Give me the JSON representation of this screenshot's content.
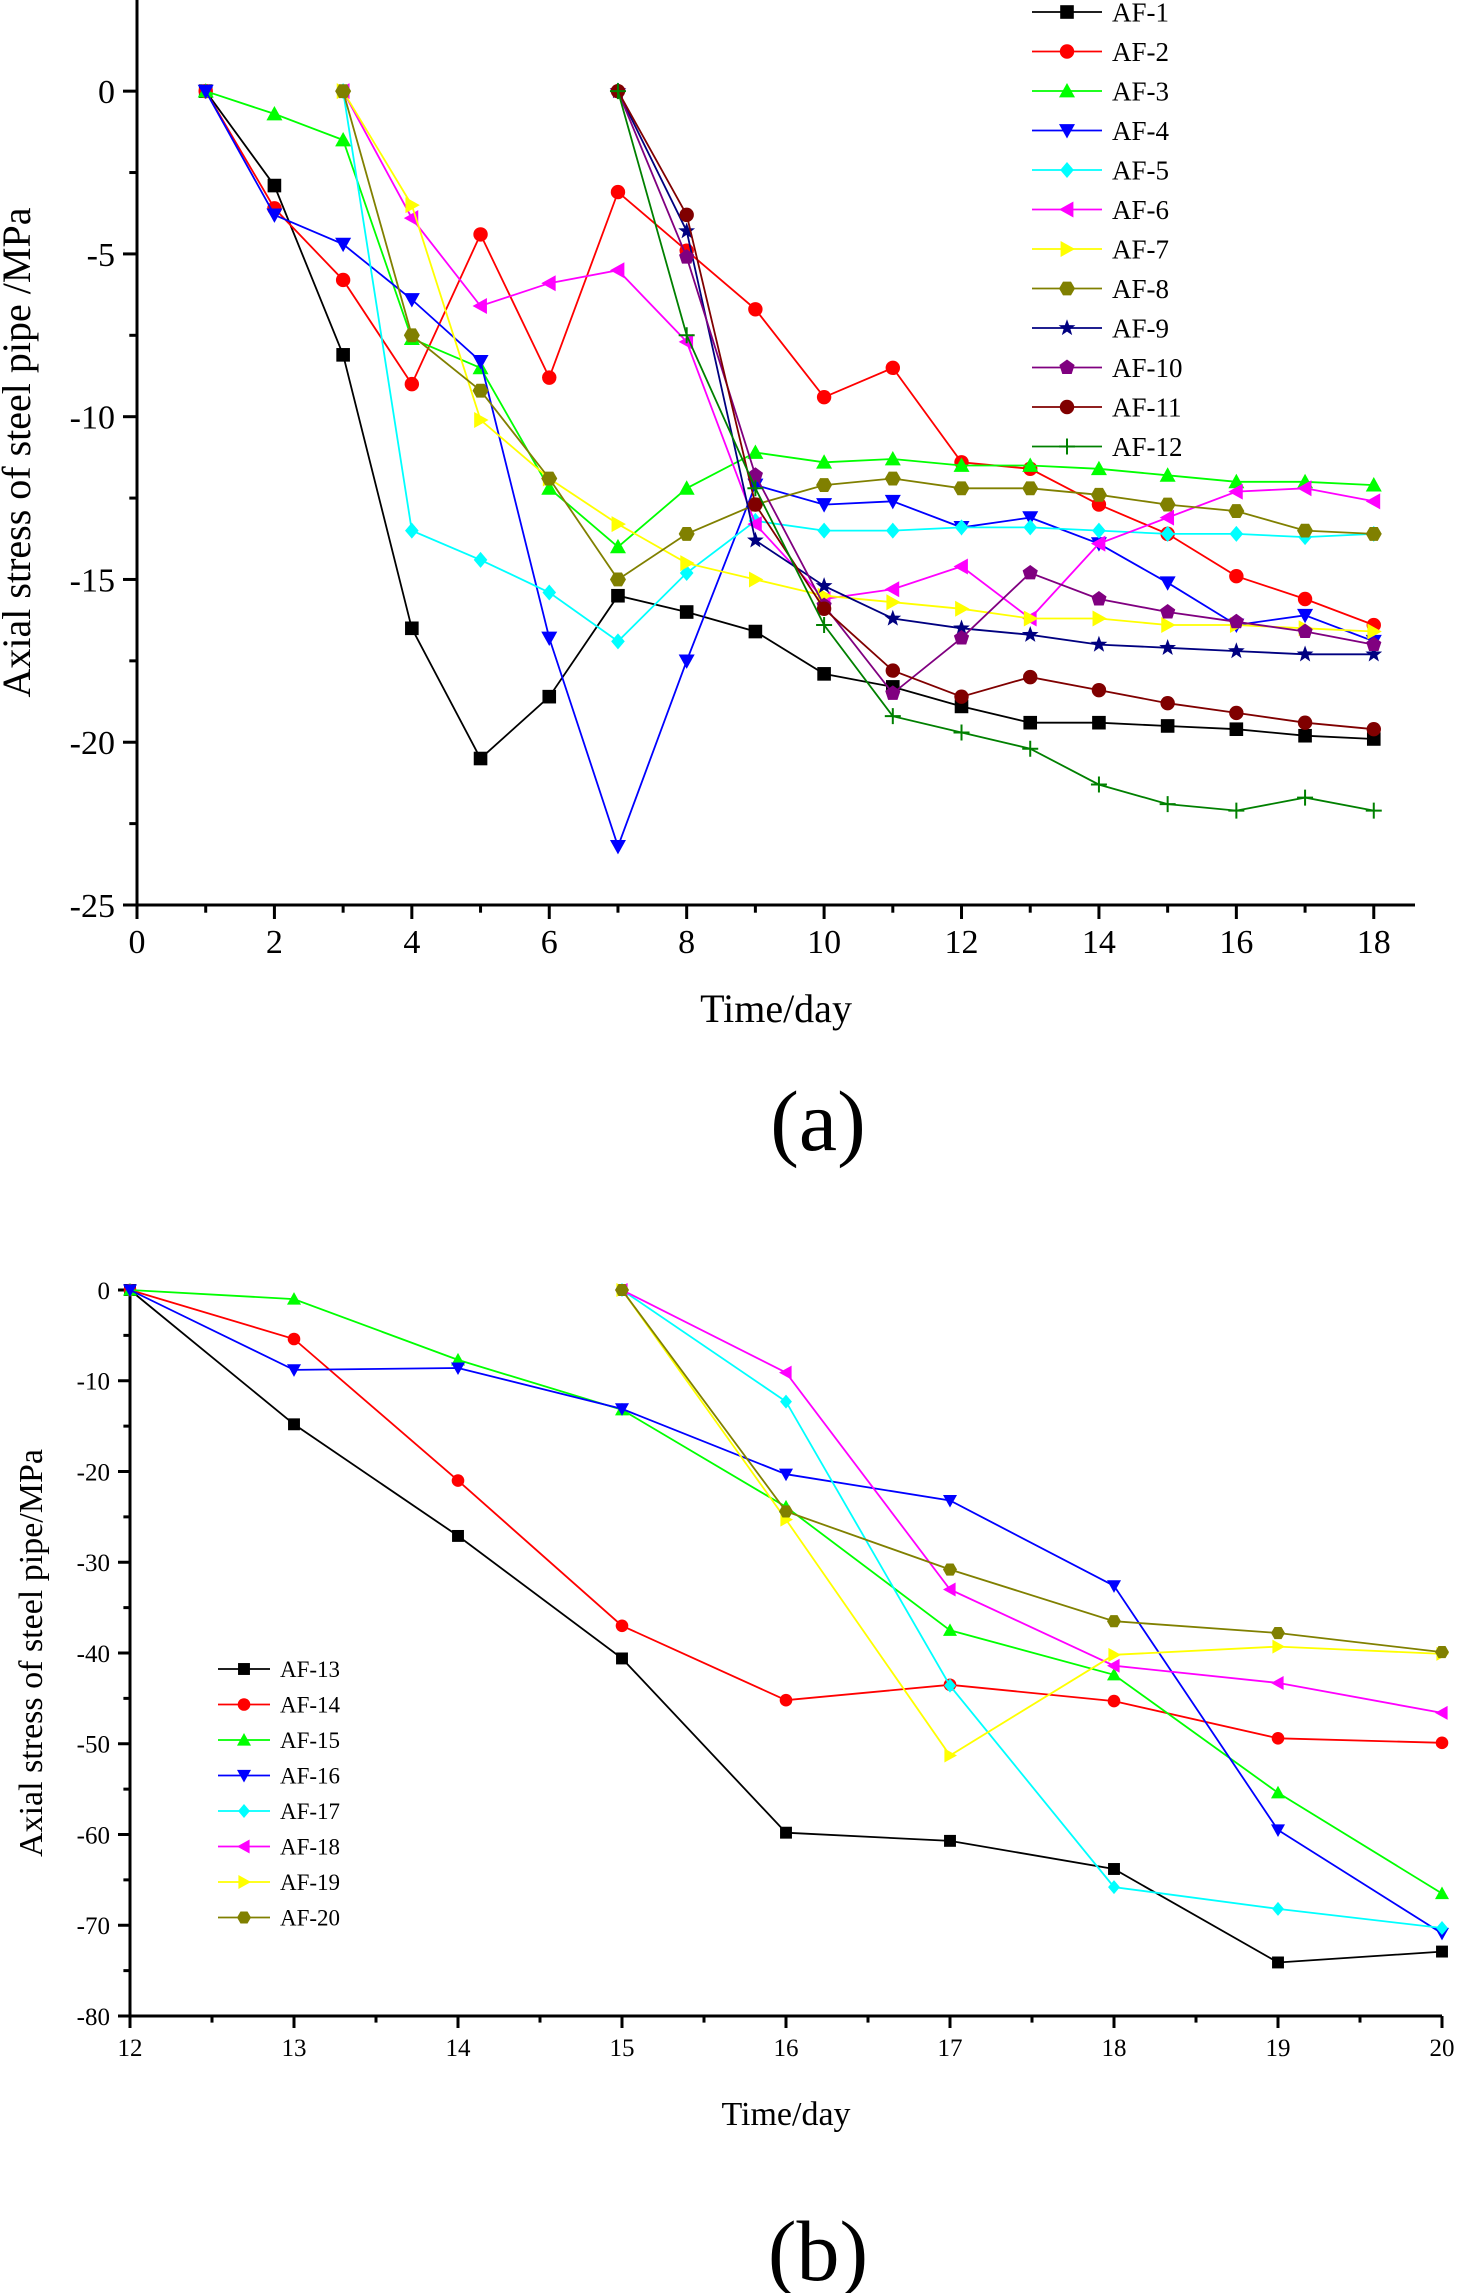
{
  "panels": [
    {
      "id": "a",
      "label": "(a)"
    },
    {
      "id": "b",
      "label": "(b)"
    }
  ],
  "chart_data": [
    {
      "type": "line",
      "xlabel": "Time/day",
      "ylabel": "Axial stress of steel pipe /MPa",
      "xlim": [
        0,
        18.6
      ],
      "ylim": [
        -25,
        2.8
      ],
      "xticks": [
        0,
        2,
        4,
        6,
        8,
        10,
        12,
        14,
        16,
        18
      ],
      "yticks": [
        0,
        -5,
        -10,
        -15,
        -20,
        -25
      ],
      "legend_position": "top-right",
      "grid": false,
      "series": [
        {
          "name": "AF-1",
          "color": "#000000",
          "marker": "square",
          "x": [
            1,
            2,
            3,
            4,
            5,
            6,
            7,
            8,
            9,
            10,
            11,
            12,
            13,
            14,
            15,
            16,
            17,
            18
          ],
          "y": [
            0,
            -2.9,
            -8.1,
            -16.5,
            -20.5,
            -18.6,
            -15.5,
            -16.0,
            -16.6,
            -17.9,
            -18.3,
            -18.9,
            -19.4,
            -19.4,
            -19.5,
            -19.6,
            -19.8,
            -19.9
          ]
        },
        {
          "name": "AF-2",
          "color": "#ff0000",
          "marker": "circle",
          "x": [
            1,
            2,
            3,
            4,
            5,
            6,
            7,
            8,
            9,
            10,
            11,
            12,
            13,
            14,
            15,
            16,
            17,
            18
          ],
          "y": [
            0,
            -3.6,
            -5.8,
            -9.0,
            -4.4,
            -8.8,
            -3.1,
            -4.9,
            -6.7,
            -9.4,
            -8.5,
            -11.4,
            -11.6,
            -12.7,
            -13.6,
            -14.9,
            -15.6,
            -16.4
          ]
        },
        {
          "name": "AF-3",
          "color": "#00ff00",
          "marker": "triangle-up",
          "x": [
            1,
            2,
            3,
            4,
            5,
            6,
            7,
            8,
            9,
            10,
            11,
            12,
            13,
            14,
            15,
            16,
            17,
            18
          ],
          "y": [
            0,
            -0.7,
            -1.5,
            -7.6,
            -8.5,
            -12.2,
            -14.0,
            -12.2,
            -11.1,
            -11.4,
            -11.3,
            -11.5,
            -11.5,
            -11.6,
            -11.8,
            -12.0,
            -12.0,
            -12.1
          ]
        },
        {
          "name": "AF-4",
          "color": "#0000ff",
          "marker": "triangle-down",
          "x": [
            1,
            2,
            3,
            4,
            5,
            6,
            7,
            8,
            9,
            10,
            11,
            12,
            13,
            14,
            15,
            16,
            17,
            18
          ],
          "y": [
            0,
            -3.8,
            -4.7,
            -6.4,
            -8.3,
            -16.8,
            -23.2,
            -17.5,
            -12.1,
            -12.7,
            -12.6,
            -13.4,
            -13.1,
            -13.9,
            -15.1,
            -16.4,
            -16.1,
            -16.9
          ]
        },
        {
          "name": "AF-5",
          "color": "#00ffff",
          "marker": "diamond",
          "x": [
            3,
            4,
            5,
            6,
            7,
            8,
            9,
            10,
            11,
            12,
            13,
            14,
            15,
            16,
            17,
            18
          ],
          "y": [
            0,
            -13.5,
            -14.4,
            -15.4,
            -16.9,
            -14.8,
            -13.2,
            -13.5,
            -13.5,
            -13.4,
            -13.4,
            -13.5,
            -13.6,
            -13.6,
            -13.7,
            -13.6
          ]
        },
        {
          "name": "AF-6",
          "color": "#ff00ff",
          "marker": "triangle-left",
          "x": [
            3,
            4,
            5,
            6,
            7,
            8,
            9,
            10,
            11,
            12,
            13,
            14,
            15,
            16,
            17,
            18
          ],
          "y": [
            0,
            -3.9,
            -6.6,
            -5.9,
            -5.5,
            -7.7,
            -13.3,
            -15.6,
            -15.3,
            -14.6,
            -16.2,
            -13.9,
            -13.1,
            -12.3,
            -12.2,
            -12.6
          ]
        },
        {
          "name": "AF-7",
          "color": "#ffff00",
          "marker": "triangle-right",
          "x": [
            3,
            4,
            5,
            6,
            7,
            8,
            9,
            10,
            11,
            12,
            13,
            14,
            15,
            16,
            17,
            18
          ],
          "y": [
            0,
            -3.5,
            -10.1,
            -11.9,
            -13.3,
            -14.5,
            -15.0,
            -15.5,
            -15.7,
            -15.9,
            -16.2,
            -16.2,
            -16.4,
            -16.4,
            -16.5,
            -16.6
          ]
        },
        {
          "name": "AF-8",
          "color": "#808000",
          "marker": "hexagon",
          "x": [
            3,
            4,
            5,
            6,
            7,
            8,
            9,
            10,
            11,
            12,
            13,
            14,
            15,
            16,
            17,
            18
          ],
          "y": [
            0,
            -7.5,
            -9.2,
            -11.9,
            -15.0,
            -13.6,
            -12.7,
            -12.1,
            -11.9,
            -12.2,
            -12.2,
            -12.4,
            -12.7,
            -12.9,
            -13.5,
            -13.6
          ]
        },
        {
          "name": "AF-9",
          "color": "#000080",
          "marker": "star",
          "x": [
            7,
            8,
            9,
            10,
            11,
            12,
            13,
            14,
            15,
            16,
            17,
            18
          ],
          "y": [
            0,
            -4.3,
            -13.8,
            -15.2,
            -16.2,
            -16.5,
            -16.7,
            -17.0,
            -17.1,
            -17.2,
            -17.3,
            -17.3
          ]
        },
        {
          "name": "AF-10",
          "color": "#800080",
          "marker": "pentagon",
          "x": [
            7,
            8,
            9,
            10,
            11,
            12,
            13,
            14,
            15,
            16,
            17,
            18
          ],
          "y": [
            0,
            -5.1,
            -11.8,
            -15.8,
            -18.5,
            -16.8,
            -14.8,
            -15.6,
            -16.0,
            -16.3,
            -16.6,
            -17.0
          ]
        },
        {
          "name": "AF-11",
          "color": "#800000",
          "marker": "circle",
          "x": [
            7,
            8,
            9,
            10,
            11,
            12,
            13,
            14,
            15,
            16,
            17,
            18
          ],
          "y": [
            0,
            -3.8,
            -12.7,
            -15.9,
            -17.8,
            -18.6,
            -18.0,
            -18.4,
            -18.8,
            -19.1,
            -19.4,
            -19.6
          ]
        },
        {
          "name": "AF-12",
          "color": "#008000",
          "marker": "plus",
          "x": [
            7,
            8,
            9,
            10,
            11,
            12,
            13,
            14,
            15,
            16,
            17,
            18
          ],
          "y": [
            0,
            -7.5,
            -12.2,
            -16.4,
            -19.2,
            -19.7,
            -20.2,
            -21.3,
            -21.9,
            -22.1,
            -21.7,
            -22.1
          ]
        }
      ]
    },
    {
      "type": "line",
      "xlabel": "Time/day",
      "ylabel": "Axial stress of steel pipe/MPa",
      "xlim": [
        12,
        20
      ],
      "ylim": [
        -80,
        0
      ],
      "xticks": [
        12,
        13,
        14,
        15,
        16,
        17,
        18,
        19,
        20
      ],
      "yticks": [
        0,
        -10,
        -20,
        -30,
        -40,
        -50,
        -60,
        -70,
        -80
      ],
      "legend_position": "bottom-left",
      "grid": false,
      "series": [
        {
          "name": "AF-13",
          "color": "#000000",
          "marker": "square",
          "x": [
            12,
            13,
            14,
            15,
            16,
            17,
            18,
            19,
            20
          ],
          "y": [
            0,
            -14.8,
            -27.1,
            -40.6,
            -59.8,
            -60.7,
            -63.8,
            -74.1,
            -72.9
          ]
        },
        {
          "name": "AF-14",
          "color": "#ff0000",
          "marker": "circle",
          "x": [
            12,
            13,
            14,
            15,
            16,
            17,
            18,
            19,
            20
          ],
          "y": [
            0,
            -5.4,
            -21.0,
            -37.0,
            -45.2,
            -43.5,
            -45.3,
            -49.4,
            -49.9
          ]
        },
        {
          "name": "AF-15",
          "color": "#00ff00",
          "marker": "triangle-up",
          "x": [
            12,
            13,
            14,
            15,
            16,
            17,
            18,
            19,
            20
          ],
          "y": [
            0,
            -1.0,
            -7.7,
            -13.2,
            -23.9,
            -37.5,
            -42.4,
            -55.4,
            -66.5
          ]
        },
        {
          "name": "AF-16",
          "color": "#0000ff",
          "marker": "triangle-down",
          "x": [
            12,
            13,
            14,
            15,
            16,
            17,
            18,
            19,
            20
          ],
          "y": [
            0,
            -8.8,
            -8.6,
            -13.1,
            -20.3,
            -23.2,
            -32.6,
            -59.5,
            -70.9
          ]
        },
        {
          "name": "AF-17",
          "color": "#00ffff",
          "marker": "diamond",
          "x": [
            15,
            16,
            17,
            18,
            19,
            20
          ],
          "y": [
            0,
            -12.3,
            -43.6,
            -65.8,
            -68.2,
            -70.3
          ]
        },
        {
          "name": "AF-18",
          "color": "#ff00ff",
          "marker": "triangle-left",
          "x": [
            15,
            16,
            17,
            18,
            19,
            20
          ],
          "y": [
            0,
            -9.1,
            -33.0,
            -41.4,
            -43.3,
            -46.6
          ]
        },
        {
          "name": "AF-19",
          "color": "#ffff00",
          "marker": "triangle-right",
          "x": [
            15,
            16,
            17,
            18,
            19,
            20
          ],
          "y": [
            0,
            -25.3,
            -51.3,
            -40.2,
            -39.3,
            -40.1
          ]
        },
        {
          "name": "AF-20",
          "color": "#808000",
          "marker": "hexagon",
          "x": [
            15,
            16,
            17,
            18,
            19,
            20
          ],
          "y": [
            0,
            -24.4,
            -30.8,
            -36.5,
            -37.8,
            -39.9
          ]
        }
      ]
    }
  ]
}
